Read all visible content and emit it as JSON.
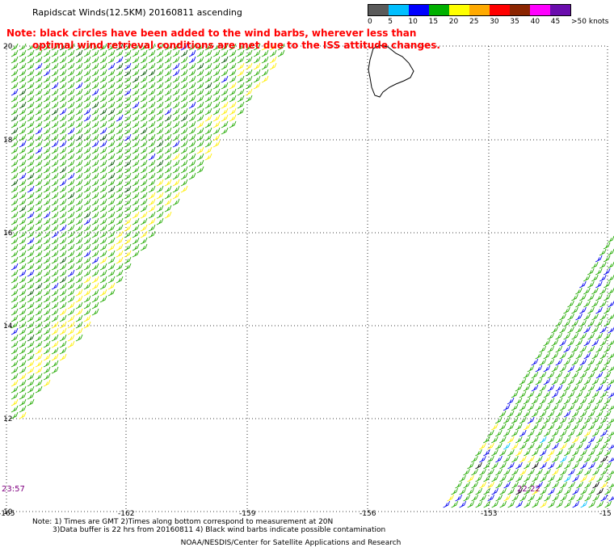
{
  "title": "Rapidscat Winds(12.5KM) 20160811 ascending",
  "note_line1": "Note: black circles have been added to the wind barbs, wherever less than",
  "note_line2": "optimal wind retrieval conditions are met due to the ISS attitude changes.",
  "scale": {
    "colors": [
      "#5a5a5a",
      "#00bfff",
      "#0000ff",
      "#00b000",
      "#ffff00",
      "#ffaa00",
      "#ff0000",
      "#8b2500",
      "#ff00ff",
      "#6a0dad"
    ],
    "labels": [
      "0",
      "5",
      "10",
      "15",
      "20",
      "25",
      "30",
      "35",
      "40",
      "45",
      ">50 knots"
    ]
  },
  "lat_labels": [
    "20",
    "18",
    "16",
    "14",
    "12",
    "10"
  ],
  "lon_labels": [
    "-165",
    "-162",
    "-159",
    "-156",
    "-153",
    "-15"
  ],
  "pass_times": [
    "23:57",
    "22:22"
  ],
  "footer_line1": "Note: 1) Times are GMT 2)Times along bottom correspond to measurement at 20N",
  "footer_line2": "3)Data buffer is 22 hrs from 20160811 4) Black wind barbs indicate possible contamination",
  "footer_line3": "NOAA/NESDIS/Center for Satellite Applications and Research"
}
